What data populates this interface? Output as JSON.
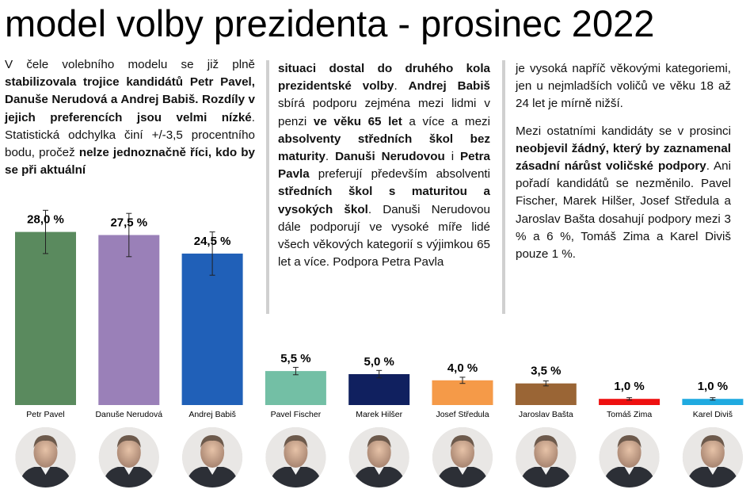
{
  "title": "model volby prezidenta - prosinec 2022",
  "columns": {
    "col1": [
      {
        "t": "V čele volebního modelu se již plně ",
        "b": false
      },
      {
        "t": "stabilizovala trojice kandidátů Petr Pavel, Danuše Nerudová a Andrej Babiš. Rozdíly v jejich preferencích jsou velmi nízké",
        "b": true
      },
      {
        "t": ". Statistická odchylka činí +/-3,5 procentního bodu, pročež ",
        "b": false
      },
      {
        "t": "nelze jednoznačně říci, kdo by se při aktuální",
        "b": true
      }
    ],
    "col2": [
      {
        "t": "situaci dostal do druhého kola prezidentské volby",
        "b": true
      },
      {
        "t": ". ",
        "b": false
      },
      {
        "t": "Andrej Babiš",
        "b": true
      },
      {
        "t": " sbírá podporu zejména mezi lidmi v penzi ",
        "b": false
      },
      {
        "t": "ve věku 65 let",
        "b": true
      },
      {
        "t": " a více a mezi ",
        "b": false
      },
      {
        "t": "absolventy středních škol bez maturity",
        "b": true
      },
      {
        "t": ". ",
        "b": false
      },
      {
        "t": "Danuši Nerudovou",
        "b": true
      },
      {
        "t": " i ",
        "b": false
      },
      {
        "t": "Petra Pavla",
        "b": true
      },
      {
        "t": " preferují především absolventi ",
        "b": false
      },
      {
        "t": "středních škol s maturitou a vysokých škol",
        "b": true
      },
      {
        "t": ". Danuši Nerudovou dále podporují ve vysoké míře lidé všech věkových kategorií s výjimkou 65 let a více. Podpora Petra Pavla",
        "b": false
      }
    ],
    "col3_p1": [
      {
        "t": "je vysoká napříč věkovými kategoriemi, jen u nejmladších voličů ve věku 18 až 24 let je mírně nižší.",
        "b": false
      }
    ],
    "col3_p2": [
      {
        "t": "Mezi ostatními kandidáty se v prosinci ",
        "b": false
      },
      {
        "t": "neobjevil žádný, který by zaznamenal zásadní nárůst voličské podpory",
        "b": true
      },
      {
        "t": ". Ani pořadí kandidátů se nezměnilo. Pavel Fischer, Marek Hilšer, Josef Středula a Jaroslav Bašta dosahují podpory mezi 3 % a 6 %, Tomáš Zima a Karel Diviš pouze 1 %.",
        "b": false
      }
    ]
  },
  "chart_data": {
    "type": "bar",
    "title": "",
    "xlabel": "",
    "ylabel": "",
    "unit": "%",
    "ylim": [
      0,
      30
    ],
    "error_margin": 3.5,
    "grid": false,
    "legend": "none",
    "categories": [
      "Petr Pavel",
      "Danuše Nerudová",
      "Andrej Babiš",
      "Pavel Fischer",
      "Marek Hilšer",
      "Josef Středula",
      "Jaroslav Bašta",
      "Tomáš Zima",
      "Karel Diviš"
    ],
    "values": [
      28.0,
      27.5,
      24.5,
      5.5,
      5.0,
      4.0,
      3.5,
      1.0,
      1.0
    ],
    "value_labels": [
      "28,0 %",
      "27,5 %",
      "24,5 %",
      "5,5 %",
      "5,0 %",
      "4,0 %",
      "3,5 %",
      "1,0 %",
      "1,0 %"
    ],
    "errors": [
      3.5,
      3.5,
      3.5,
      0.6,
      0.6,
      0.5,
      0.4,
      0.2,
      0.2
    ],
    "colors": [
      "#5a8a5e",
      "#9a80b8",
      "#2060b8",
      "#73bfa5",
      "#10205f",
      "#f59a48",
      "#9a6535",
      "#ee1010",
      "#20aae0"
    ],
    "photo_icons": [
      "portrait-icon",
      "portrait-icon",
      "portrait-icon",
      "portrait-icon",
      "portrait-icon",
      "portrait-icon",
      "portrait-icon",
      "portrait-icon",
      "portrait-icon"
    ]
  }
}
